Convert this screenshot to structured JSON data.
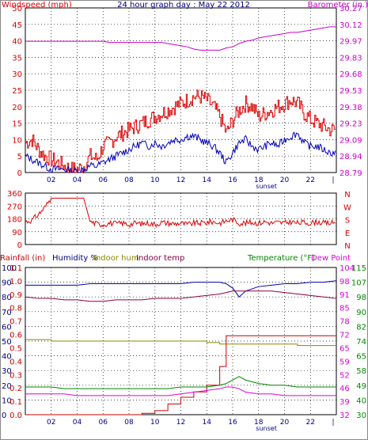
{
  "title": "24 hour graph day : May 22 2012",
  "colors": {
    "wind": "#dd0000",
    "gust": "#dd0000",
    "avg_wind": "#0000bb",
    "baro": "#cc00cc",
    "dir": "#dd0000",
    "humidity": "#0000aa",
    "indoor_hum": "#888800",
    "indoor_temp": "#880044",
    "rain": "#cc0000",
    "temp": "#008800",
    "dew": "#dd00dd",
    "grid": "#000000",
    "frame": "#999999"
  },
  "chart_data": [
    {
      "type": "line",
      "panel": "wind_baro",
      "title": "24 hour graph day : May 22 2012",
      "ylabel_left": "Windspeed (mph)",
      "ylabel_right": "Barometer (in.)",
      "x_ticks": [
        "02",
        "04",
        "06",
        "08",
        "10",
        "12",
        "14",
        "16",
        "18",
        "20",
        "22"
      ],
      "x_annotation": "sunset",
      "y_left_ticks": [
        "0",
        "5",
        "10",
        "15",
        "20",
        "25",
        "30",
        "35",
        "40",
        "45",
        "50"
      ],
      "y_left_range": [
        0,
        50
      ],
      "y_right_ticks": [
        "28.79",
        "28.94",
        "29.09",
        "29.23",
        "29.38",
        "29.53",
        "29.68",
        "29.83",
        "29.97",
        "30.12",
        "30.27"
      ],
      "y_right_range": [
        28.79,
        30.27
      ],
      "grid": true,
      "hours": [
        0,
        0.5,
        1,
        1.5,
        2,
        2.5,
        3,
        3.5,
        4,
        4.5,
        5,
        5.5,
        6,
        6.5,
        7,
        7.5,
        8,
        8.5,
        9,
        9.5,
        10,
        10.5,
        11,
        11.5,
        12,
        12.5,
        13,
        13.5,
        14,
        14.5,
        15,
        15.5,
        16,
        16.5,
        17,
        17.5,
        18,
        18.5,
        19,
        19.5,
        20,
        20.5,
        21,
        21.5,
        22,
        22.5,
        23,
        23.5,
        24
      ],
      "series": [
        {
          "name": "gust",
          "values": [
            9,
            10,
            7,
            5,
            4,
            3,
            2,
            1,
            1,
            2,
            5,
            4,
            8,
            9,
            11,
            12,
            13,
            14,
            15,
            16,
            17,
            18,
            19,
            20,
            21,
            22,
            23,
            23,
            22,
            20,
            17,
            12,
            16,
            19,
            21,
            20,
            17,
            18,
            19,
            20,
            21,
            22,
            21,
            18,
            16,
            15,
            14,
            13,
            13
          ]
        },
        {
          "name": "average",
          "values": [
            5,
            4,
            3,
            2,
            1,
            1,
            1,
            0.5,
            0.5,
            1,
            2,
            2,
            3,
            4,
            5,
            6,
            7,
            8,
            9,
            8,
            9,
            8,
            9,
            10,
            10,
            11,
            11,
            10,
            9,
            8,
            6,
            3,
            6,
            9,
            10,
            8,
            7,
            8,
            9,
            8,
            10,
            11,
            12,
            9,
            8,
            8,
            7,
            6,
            6
          ]
        },
        {
          "name": "barometer",
          "values": [
            29.97,
            29.97,
            29.97,
            29.97,
            29.97,
            29.97,
            29.97,
            29.97,
            29.97,
            29.97,
            29.97,
            29.97,
            29.97,
            29.96,
            29.96,
            29.96,
            29.96,
            29.96,
            29.96,
            29.96,
            29.96,
            29.96,
            29.95,
            29.94,
            29.93,
            29.92,
            29.9,
            29.89,
            29.89,
            29.89,
            29.89,
            29.91,
            29.92,
            29.95,
            29.97,
            29.98,
            30.0,
            30.01,
            30.02,
            30.03,
            30.04,
            30.05,
            30.05,
            30.06,
            30.07,
            30.08,
            30.09,
            30.1,
            30.1
          ]
        }
      ]
    },
    {
      "type": "line",
      "panel": "direction",
      "y_ticks": [
        "360",
        "270",
        "180",
        "90",
        "0"
      ],
      "y_range": [
        0,
        360
      ],
      "right_labels": [
        "N",
        "W",
        "S",
        "E",
        "N"
      ],
      "grid": true,
      "hours": [
        0,
        0.5,
        1,
        1.5,
        2,
        2.5,
        3,
        3.5,
        4,
        4.5,
        5,
        5.5,
        6,
        6.5,
        7,
        7.5,
        8,
        8.5,
        9,
        9.5,
        10,
        10.5,
        11,
        11.5,
        12,
        12.5,
        13,
        13.5,
        14,
        14.5,
        15,
        15.5,
        16,
        16.5,
        17,
        17.5,
        18,
        18.5,
        19,
        19.5,
        20,
        20.5,
        21,
        21.5,
        22,
        22.5,
        23,
        23.5,
        24
      ],
      "series": [
        {
          "name": "direction",
          "values": [
            160,
            170,
            210,
            260,
            325,
            325,
            325,
            325,
            325,
            325,
            160,
            145,
            140,
            150,
            145,
            150,
            140,
            150,
            145,
            150,
            140,
            155,
            150,
            145,
            150,
            140,
            150,
            150,
            155,
            160,
            150,
            165,
            175,
            150,
            150,
            155,
            150,
            160,
            150,
            155,
            150,
            160,
            150,
            155,
            150,
            160,
            150,
            150,
            155
          ]
        }
      ]
    },
    {
      "type": "line",
      "panel": "temp_hum_rain",
      "labels": {
        "rain": "Rainfall (in)",
        "humidity": "Humidity %",
        "indoor_hum": "Indoor hum",
        "indoor_temp": "Indoor temp",
        "temp": "Temperature (°F)",
        "dew": "Dew Point"
      },
      "y_left_outer_ticks": [
        "0",
        "10",
        "20",
        "30",
        "40",
        "50",
        "60",
        "70",
        "80",
        "90",
        "100"
      ],
      "y_left_outer_range": [
        0,
        100
      ],
      "y_left_inner_ticks": [
        "0.0",
        "0.1",
        "0.2",
        "0.3",
        "0.4",
        "0.5",
        "0.6",
        "0.7",
        "0.8",
        "0.9",
        "1.0",
        "1.1"
      ],
      "y_left_inner_range": [
        0,
        1.1
      ],
      "y_right_inner_ticks": [
        "32",
        "39",
        "46",
        "52",
        "59",
        "65",
        "72",
        "78",
        "85",
        "91",
        "98",
        "104"
      ],
      "y_right_outer_ticks": [
        "30",
        "40",
        "49",
        "58",
        "65",
        "74",
        "82",
        "90",
        "98",
        "107",
        "115"
      ],
      "y_right_outer_range": [
        30,
        115
      ],
      "x_ticks": [
        "02",
        "04",
        "06",
        "08",
        "10",
        "12",
        "14",
        "16",
        "18",
        "20",
        "22"
      ],
      "x_annotation": "sunset",
      "grid": true,
      "hours": [
        0,
        1,
        2,
        3,
        4,
        5,
        6,
        7,
        8,
        9,
        10,
        11,
        12,
        13,
        14,
        15,
        15.5,
        16,
        16.5,
        17,
        18,
        19,
        20,
        21,
        22,
        23,
        24
      ],
      "series": [
        {
          "name": "Humidity %",
          "values": [
            88,
            88,
            88,
            88,
            88,
            89,
            89,
            89,
            89,
            89,
            89,
            89,
            89,
            90,
            90,
            90,
            89,
            86,
            80,
            84,
            87,
            88,
            89,
            89,
            90,
            90,
            91
          ]
        },
        {
          "name": "Indoor hum",
          "values": [
            51,
            51,
            50,
            50,
            50,
            50,
            50,
            50,
            50,
            50,
            50,
            50,
            50,
            50,
            49,
            48,
            48,
            48,
            48,
            48,
            48,
            48,
            48,
            47,
            47,
            47,
            47
          ]
        },
        {
          "name": "Indoor temp",
          "values": [
            80,
            79,
            79,
            78,
            78,
            77,
            77,
            78,
            78,
            78,
            79,
            79,
            79,
            80,
            81,
            82,
            83,
            84,
            84,
            84,
            84,
            84,
            83,
            82,
            81,
            80,
            79
          ]
        },
        {
          "name": "Rainfall (in)",
          "values": [
            0,
            0,
            0,
            0,
            0,
            0,
            0,
            0,
            0,
            0.01,
            0.03,
            0.08,
            0.13,
            0.17,
            0.22,
            0.36,
            0.59,
            0.59,
            0.59,
            0.59,
            0.59,
            0.59,
            0.59,
            0.59,
            0.59,
            0.59,
            0.59
          ]
        },
        {
          "name": "Temperature (°F)",
          "values": [
            46,
            46,
            46,
            45,
            45,
            45,
            45,
            45,
            45,
            45,
            45,
            45,
            46,
            46,
            46,
            47,
            48,
            50,
            52,
            50,
            48,
            47,
            47,
            46,
            46,
            46,
            46
          ]
        },
        {
          "name": "Dew Point",
          "values": [
            42,
            42,
            42,
            42,
            41,
            41,
            41,
            41,
            41,
            41,
            41,
            41,
            42,
            43,
            44,
            45,
            46,
            46,
            45,
            43,
            42,
            42,
            41,
            41,
            41,
            41,
            41
          ]
        }
      ]
    }
  ]
}
